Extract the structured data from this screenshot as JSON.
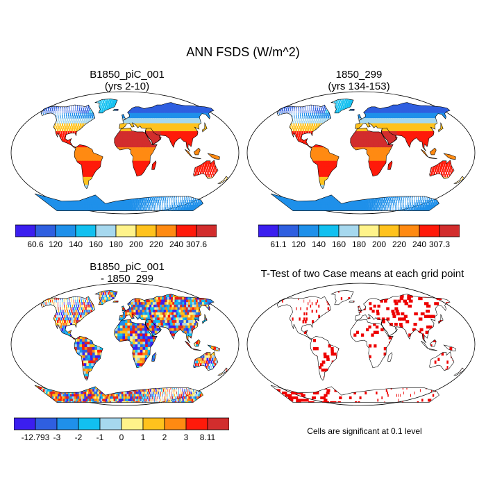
{
  "title": "ANN FSDS (W/m^2)",
  "panels": {
    "top_left": {
      "title1": "B1850_piC_001",
      "title2": "(yrs 2-10)"
    },
    "top_right": {
      "title1": "1850_299",
      "title2": "(yrs 134-153)"
    },
    "bottom_left": {
      "title1": "B1850_piC_001",
      "title2": "- 1850_299"
    },
    "bottom_right": {
      "title1": "T-Test of two Case means at each grid point"
    }
  },
  "colorbars": {
    "top_left": {
      "colors": [
        "#3b1eef",
        "#2f5fe0",
        "#1f90ea",
        "#12c0f0",
        "#a6d8ee",
        "#fff38a",
        "#ffc21d",
        "#ff8a12",
        "#ff1a0a",
        "#d22d2d"
      ],
      "labels": [
        "60.6",
        "120",
        "140",
        "160",
        "180",
        "200",
        "220",
        "240",
        "307.6"
      ]
    },
    "top_right": {
      "colors": [
        "#3b1eef",
        "#2f5fe0",
        "#1f90ea",
        "#12c0f0",
        "#a6d8ee",
        "#fff38a",
        "#ffc21d",
        "#ff8a12",
        "#ff1a0a",
        "#d22d2d"
      ],
      "labels": [
        "61.1",
        "120",
        "140",
        "160",
        "180",
        "200",
        "220",
        "240",
        "307.3"
      ]
    },
    "bottom_left": {
      "colors": [
        "#3b1eef",
        "#2f5fe0",
        "#1f90ea",
        "#12c0f0",
        "#a6d8ee",
        "#fff38a",
        "#ffc21d",
        "#ff8a12",
        "#ff1a0a",
        "#d22d2d"
      ],
      "labels": [
        "-12.793",
        "-3",
        "-2",
        "-1",
        "0",
        "1",
        "2",
        "3",
        "8.11"
      ]
    }
  },
  "note": "Cells are significant at 0.1 level",
  "colors": {
    "ocean": "#ffffff",
    "coast": "#000000",
    "significant": "#ee0000"
  }
}
